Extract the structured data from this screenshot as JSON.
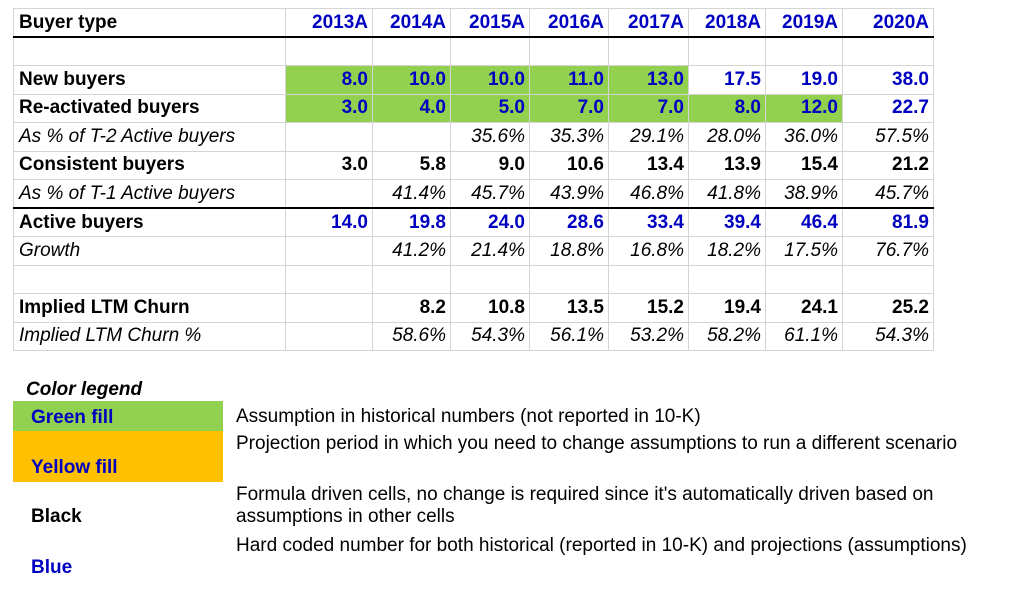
{
  "table": {
    "header_label": "Buyer type",
    "years": [
      "2013A",
      "2014A",
      "2015A",
      "2016A",
      "2017A",
      "2018A",
      "2019A",
      "2020A"
    ],
    "rows": [
      {
        "label": "New buyers",
        "values": [
          "8.0",
          "10.0",
          "10.0",
          "11.0",
          "13.0",
          "17.5",
          "19.0",
          "38.0"
        ]
      },
      {
        "label": "Re-activated buyers",
        "values": [
          "3.0",
          "4.0",
          "5.0",
          "7.0",
          "7.0",
          "8.0",
          "12.0",
          "22.7"
        ]
      },
      {
        "label": "As % of T-2 Active buyers",
        "values": [
          "",
          "",
          "35.6%",
          "35.3%",
          "29.1%",
          "28.0%",
          "36.0%",
          "57.5%"
        ]
      },
      {
        "label": "Consistent buyers",
        "values": [
          "3.0",
          "5.8",
          "9.0",
          "10.6",
          "13.4",
          "13.9",
          "15.4",
          "21.2"
        ]
      },
      {
        "label": "As % of T-1 Active buyers",
        "values": [
          "",
          "41.4%",
          "45.7%",
          "43.9%",
          "46.8%",
          "41.8%",
          "38.9%",
          "45.7%"
        ]
      },
      {
        "label": "Active buyers",
        "values": [
          "14.0",
          "19.8",
          "24.0",
          "28.6",
          "33.4",
          "39.4",
          "46.4",
          "81.9"
        ]
      },
      {
        "label": "Growth",
        "values": [
          "",
          "41.2%",
          "21.4%",
          "18.8%",
          "16.8%",
          "18.2%",
          "17.5%",
          "76.7%"
        ]
      },
      {
        "label": "Implied LTM Churn",
        "values": [
          "",
          "8.2",
          "10.8",
          "13.5",
          "15.2",
          "19.4",
          "24.1",
          "25.2"
        ]
      },
      {
        "label": "Implied LTM Churn %",
        "values": [
          "",
          "58.6%",
          "54.3%",
          "56.1%",
          "53.2%",
          "58.2%",
          "61.1%",
          "54.3%"
        ]
      }
    ]
  },
  "legend": {
    "title": "Color legend",
    "items": [
      {
        "label": "Green fill",
        "description": "Assumption in historical numbers (not reported in 10-K)"
      },
      {
        "label": "Yellow fill",
        "description": "Projection period in which you need to change assumptions to run a different scenario"
      },
      {
        "label": "Black",
        "description": "Formula driven cells, no change is required since it's automatically driven based on assumptions in other cells"
      },
      {
        "label": "Blue",
        "description": "Hard coded number for both historical (reported in 10-K) and projections (assumptions)"
      }
    ]
  },
  "colors": {
    "green": "#92d050",
    "yellow": "#ffc000",
    "blue": "#0000c0",
    "black": "#000000"
  }
}
